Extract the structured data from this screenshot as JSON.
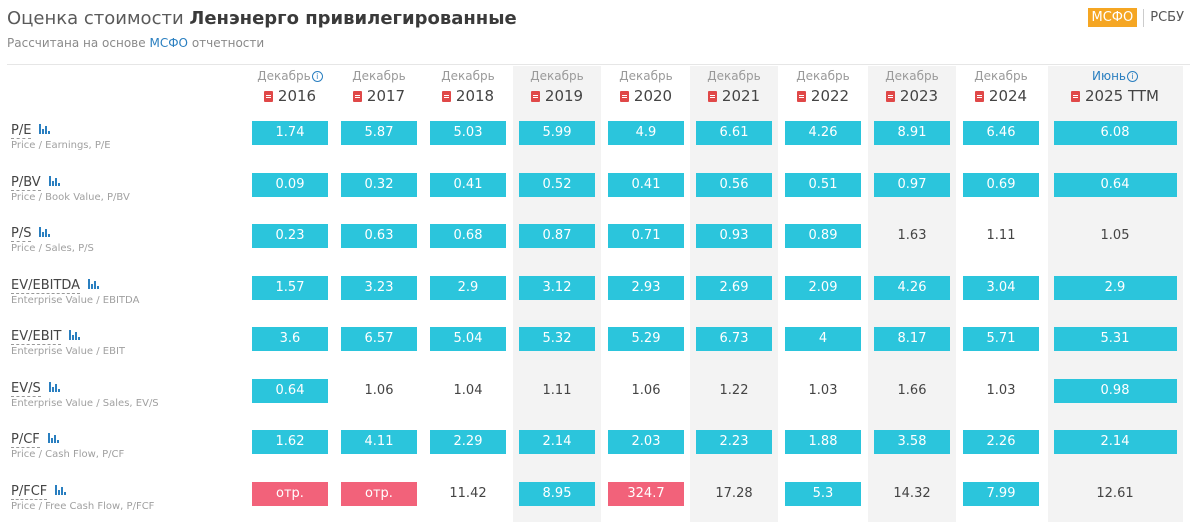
{
  "header": {
    "title_prefix": "Оценка стоимости",
    "title_company": "Ленэнерго привилегированные",
    "subtitle_start": "Рассчитана на основе",
    "subtitle_link": "МСФО",
    "subtitle_end": "отчетности",
    "standards": {
      "active": "МСФО",
      "other": "РСБУ"
    }
  },
  "colors": {
    "cyan": "#2bc5dc",
    "red": "#f2627a",
    "accent_orange": "#f5a623",
    "link_blue": "#2a7fc0"
  },
  "columns": [
    {
      "period": "Декабрь",
      "year": "2016",
      "info": true
    },
    {
      "period": "Декабрь",
      "year": "2017"
    },
    {
      "period": "Декабрь",
      "year": "2018"
    },
    {
      "period": "Декабрь",
      "year": "2019"
    },
    {
      "period": "Декабрь",
      "year": "2020"
    },
    {
      "period": "Декабрь",
      "year": "2021"
    },
    {
      "period": "Декабрь",
      "year": "2022"
    },
    {
      "period": "Декабрь",
      "year": "2023"
    },
    {
      "period": "Декабрь",
      "year": "2024"
    },
    {
      "period": "Июнь",
      "year": "2025 TTM",
      "info": true
    }
  ],
  "rows": [
    {
      "abbr": "P/E",
      "full": "Price / Earnings, P/E",
      "cells": [
        [
          "1.74",
          "c"
        ],
        [
          "5.87",
          "c"
        ],
        [
          "5.03",
          "c"
        ],
        [
          "5.99",
          "c"
        ],
        [
          "4.9",
          "c"
        ],
        [
          "6.61",
          "c"
        ],
        [
          "4.26",
          "c"
        ],
        [
          "8.91",
          "c"
        ],
        [
          "6.46",
          "c"
        ],
        [
          "6.08",
          "c"
        ]
      ]
    },
    {
      "abbr": "P/BV",
      "full": "Price / Book Value, P/BV",
      "cells": [
        [
          "0.09",
          "c"
        ],
        [
          "0.32",
          "c"
        ],
        [
          "0.41",
          "c"
        ],
        [
          "0.52",
          "c"
        ],
        [
          "0.41",
          "c"
        ],
        [
          "0.56",
          "c"
        ],
        [
          "0.51",
          "c"
        ],
        [
          "0.97",
          "c"
        ],
        [
          "0.69",
          "c"
        ],
        [
          "0.64",
          "c"
        ]
      ]
    },
    {
      "abbr": "P/S",
      "full": "Price / Sales, P/S",
      "cells": [
        [
          "0.23",
          "c"
        ],
        [
          "0.63",
          "c"
        ],
        [
          "0.68",
          "c"
        ],
        [
          "0.87",
          "c"
        ],
        [
          "0.71",
          "c"
        ],
        [
          "0.93",
          "c"
        ],
        [
          "0.89",
          "c"
        ],
        [
          "1.63",
          ""
        ],
        [
          "1.11",
          ""
        ],
        [
          "1.05",
          ""
        ]
      ]
    },
    {
      "abbr": "EV/EBITDA",
      "full": "Enterprise Value / EBITDA",
      "cells": [
        [
          "1.57",
          "c"
        ],
        [
          "3.23",
          "c"
        ],
        [
          "2.9",
          "c"
        ],
        [
          "3.12",
          "c"
        ],
        [
          "2.93",
          "c"
        ],
        [
          "2.69",
          "c"
        ],
        [
          "2.09",
          "c"
        ],
        [
          "4.26",
          "c"
        ],
        [
          "3.04",
          "c"
        ],
        [
          "2.9",
          "c"
        ]
      ]
    },
    {
      "abbr": "EV/EBIT",
      "full": "Enterprise Value / EBIT",
      "cells": [
        [
          "3.6",
          "c"
        ],
        [
          "6.57",
          "c"
        ],
        [
          "5.04",
          "c"
        ],
        [
          "5.32",
          "c"
        ],
        [
          "5.29",
          "c"
        ],
        [
          "6.73",
          "c"
        ],
        [
          "4",
          "c"
        ],
        [
          "8.17",
          "c"
        ],
        [
          "5.71",
          "c"
        ],
        [
          "5.31",
          "c"
        ]
      ]
    },
    {
      "abbr": "EV/S",
      "full": "Enterprise Value / Sales, EV/S",
      "cells": [
        [
          "0.64",
          "c"
        ],
        [
          "1.06",
          ""
        ],
        [
          "1.04",
          ""
        ],
        [
          "1.11",
          ""
        ],
        [
          "1.06",
          ""
        ],
        [
          "1.22",
          ""
        ],
        [
          "1.03",
          ""
        ],
        [
          "1.66",
          ""
        ],
        [
          "1.03",
          ""
        ],
        [
          "0.98",
          "c"
        ]
      ]
    },
    {
      "abbr": "P/CF",
      "full": "Price / Cash Flow, P/CF",
      "cells": [
        [
          "1.62",
          "c"
        ],
        [
          "4.11",
          "c"
        ],
        [
          "2.29",
          "c"
        ],
        [
          "2.14",
          "c"
        ],
        [
          "2.03",
          "c"
        ],
        [
          "2.23",
          "c"
        ],
        [
          "1.88",
          "c"
        ],
        [
          "3.58",
          "c"
        ],
        [
          "2.26",
          "c"
        ],
        [
          "2.14",
          "c"
        ]
      ]
    },
    {
      "abbr": "P/FCF",
      "full": "Price / Free Cash Flow, P/FCF",
      "cells": [
        [
          "отр.",
          "r"
        ],
        [
          "отр.",
          "r"
        ],
        [
          "11.42",
          ""
        ],
        [
          "8.95",
          "c"
        ],
        [
          "324.7",
          "r"
        ],
        [
          "17.28",
          ""
        ],
        [
          "5.3",
          "c"
        ],
        [
          "14.32",
          ""
        ],
        [
          "7.99",
          "c"
        ],
        [
          "12.61",
          ""
        ]
      ]
    }
  ]
}
